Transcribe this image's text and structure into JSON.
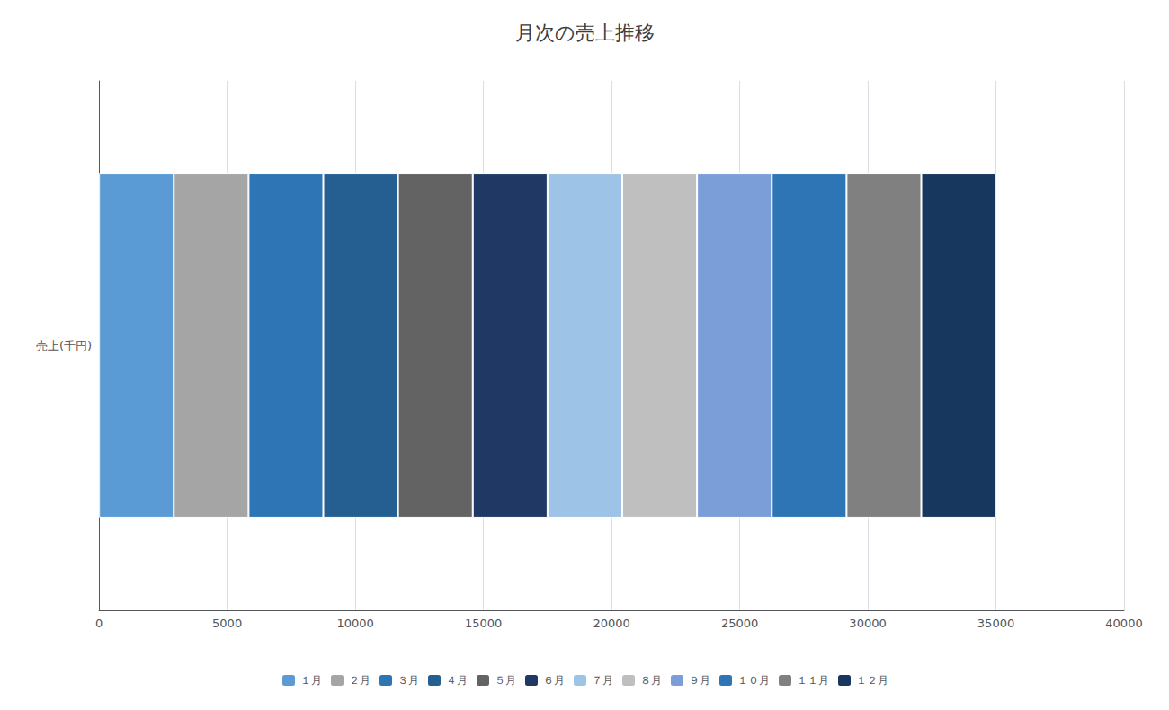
{
  "chart_data": {
    "type": "bar",
    "orientation": "horizontal",
    "stacked": true,
    "title": "月次の売上推移",
    "categories": [
      "売上(千円)"
    ],
    "series": [
      {
        "name": "１月",
        "color": "#5B9BD5",
        "values": [
          2917
        ]
      },
      {
        "name": "２月",
        "color": "#A5A5A5",
        "values": [
          2917
        ]
      },
      {
        "name": "３月",
        "color": "#2E75B6",
        "values": [
          2917
        ]
      },
      {
        "name": "４月",
        "color": "#255E91",
        "values": [
          2917
        ]
      },
      {
        "name": "５月",
        "color": "#636363",
        "values": [
          2917
        ]
      },
      {
        "name": "６月",
        "color": "#1F3864",
        "values": [
          2917
        ]
      },
      {
        "name": "７月",
        "color": "#9DC3E6",
        "values": [
          2917
        ]
      },
      {
        "name": "８月",
        "color": "#BFBFBF",
        "values": [
          2917
        ]
      },
      {
        "name": "９月",
        "color": "#7B9ED9",
        "values": [
          2917
        ]
      },
      {
        "name": "１０月",
        "color": "#2E75B6",
        "values": [
          2917
        ]
      },
      {
        "name": "１１月",
        "color": "#808080",
        "values": [
          2917
        ]
      },
      {
        "name": "１２月",
        "color": "#17375E",
        "values": [
          2917
        ]
      }
    ],
    "xlim": [
      0,
      40000
    ],
    "xticks": [
      0,
      5000,
      10000,
      15000,
      20000,
      25000,
      30000,
      35000,
      40000
    ],
    "grid": true,
    "legend": "bottom"
  }
}
